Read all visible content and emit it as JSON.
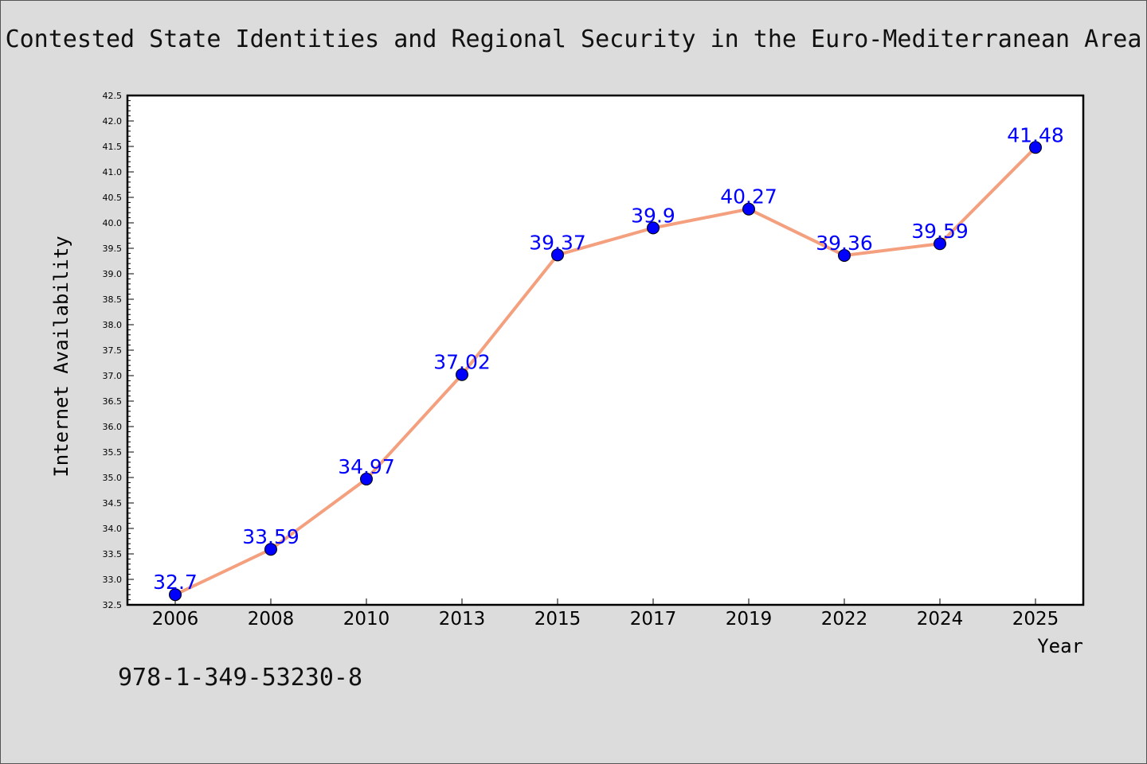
{
  "chart_data": {
    "type": "line",
    "title": "Contested State Identities and Regional Security in the Euro-Mediterranean Area",
    "xlabel": "Year",
    "ylabel": "Internet Availability",
    "categories": [
      "2006",
      "2008",
      "2010",
      "2013",
      "2015",
      "2017",
      "2019",
      "2022",
      "2024",
      "2025"
    ],
    "series": [
      {
        "values": [
          32.7,
          33.59,
          34.97,
          37.02,
          39.37,
          39.9,
          40.27,
          39.36,
          39.59,
          41.48
        ],
        "labels": [
          "32.7",
          "33.59",
          "34.97",
          "37.02",
          "39.37",
          "39.9",
          "40.27",
          "39.36",
          "39.59",
          "41.48"
        ],
        "line_color": "#f4a07f",
        "marker_color": "#0000ff"
      }
    ],
    "ylim": [
      32.5,
      42.5
    ],
    "ytick_step": 0.5,
    "yticks": [
      "32.5",
      "33.0",
      "33.5",
      "34.0",
      "34.5",
      "35.0",
      "35.5",
      "36.0",
      "36.5",
      "37.0",
      "37.5",
      "38.0",
      "38.5",
      "39.0",
      "39.5",
      "40.0",
      "40.5",
      "41.0",
      "41.5",
      "42.0",
      "42.5"
    ],
    "grid": false,
    "legend": "none"
  },
  "footer": {
    "isbn": "978-1-349-53230-8"
  }
}
